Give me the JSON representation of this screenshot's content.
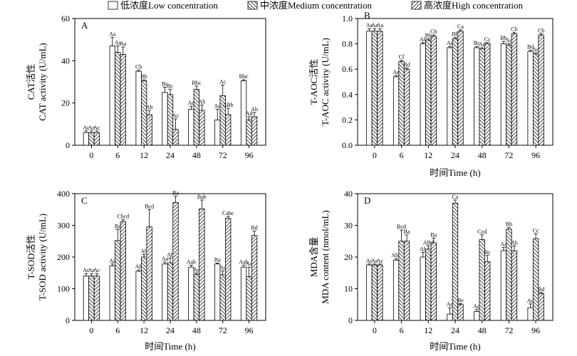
{
  "legend": [
    {
      "name": "低浓度Low concentration",
      "pattern": "none"
    },
    {
      "name": "中浓度Medium concentration",
      "pattern": "back"
    },
    {
      "name": "高浓度High concentration",
      "pattern": "fwd"
    }
  ],
  "chart_data": [
    {
      "type": "bar",
      "panel": "A",
      "categories": [
        "0",
        "6",
        "12",
        "24",
        "48",
        "72",
        "96"
      ],
      "xlabel": "",
      "ylabel": [
        "CAT活性",
        "CAT activity (U/mL)"
      ],
      "ylim": [
        0,
        60
      ],
      "yticks": [
        0,
        20,
        40,
        60
      ],
      "series": [
        {
          "name": "低浓度Low concentration",
          "values": [
            6,
            47,
            35,
            25,
            17,
            12,
            30.5
          ],
          "errors": [
            0.8,
            4,
            0.5,
            2.5,
            1.5,
            5,
            0.5
          ],
          "labels": [
            "Ac",
            "Aa",
            "Cb",
            "Bc",
            "Ad",
            "Ad",
            "Bbc"
          ]
        },
        {
          "name": "中浓度Medium concentration",
          "values": [
            6,
            44,
            30.5,
            24,
            26.5,
            23.5,
            12
          ],
          "errors": [
            0.8,
            3,
            0.5,
            2.5,
            1.5,
            5,
            1.5
          ],
          "labels": [
            "Ae",
            "Aa",
            "Bb",
            "Bc",
            "Bbc",
            "Ac",
            "Ad"
          ]
        },
        {
          "name": "高浓度High concentration",
          "values": [
            6,
            43,
            14.5,
            7.5,
            16.5,
            14.5,
            13.5
          ],
          "errors": [
            0.8,
            3.5,
            2,
            5,
            2.5,
            3,
            2
          ],
          "labels": [
            "Ac",
            "Aa",
            "Ab",
            "Ac",
            "Ab",
            "ΔBb",
            "Ab"
          ]
        }
      ]
    },
    {
      "type": "bar",
      "panel": "B",
      "categories": [
        "0",
        "6",
        "12",
        "24",
        "48",
        "72",
        "96"
      ],
      "xlabel": "时间Time (h)",
      "ylabel": [
        "T-AOC活性",
        "T-AOC activity (U/mL)"
      ],
      "ylim": [
        0,
        1.0
      ],
      "yticks": [
        0,
        0.2,
        0.4,
        0.6,
        0.8,
        1.0
      ],
      "series": [
        {
          "name": "低浓度Low concentration",
          "values": [
            0.9,
            0.54,
            0.8,
            0.77,
            0.77,
            0.8,
            0.74
          ],
          "errors": [
            0.02,
            0.01,
            0.01,
            0.01,
            0.01,
            0.02,
            0.01
          ],
          "labels": [
            "Aa",
            "Ae",
            "Ab",
            "Ac",
            "Bc",
            "Bb",
            "Bd"
          ]
        },
        {
          "name": "中浓度Medium concentration",
          "values": [
            0.9,
            0.66,
            0.83,
            0.84,
            0.76,
            0.79,
            0.72
          ],
          "errors": [
            0.02,
            0.01,
            0.01,
            0.01,
            0.01,
            0.01,
            0.01
          ],
          "labels": [
            "Aa",
            "Cf",
            "Bb",
            "Bb",
            "Ad",
            "Ac",
            "Ad"
          ]
        },
        {
          "name": "高浓度High concentration",
          "values": [
            0.9,
            0.6,
            0.86,
            0.9,
            0.8,
            0.88,
            0.87
          ],
          "errors": [
            0.02,
            0.01,
            0.01,
            0.01,
            0.01,
            0.01,
            0.01
          ],
          "labels": [
            "Aa",
            "Bd",
            "Cb",
            "Ca",
            "Cc",
            "Cb",
            "Cb"
          ]
        }
      ]
    },
    {
      "type": "bar",
      "panel": "C",
      "categories": [
        "0",
        "6",
        "12",
        "24",
        "48",
        "72",
        "96"
      ],
      "xlabel": "时间Time (h)",
      "ylabel": [
        "T-SOD活性",
        "T-SOD activity (U/mL)"
      ],
      "ylim": [
        0,
        400
      ],
      "yticks": [
        0,
        100,
        200,
        300,
        400
      ],
      "series": [
        {
          "name": "低浓度Low concentration",
          "values": [
            140,
            172,
            155,
            178,
            168,
            178,
            168
          ],
          "errors": [
            8,
            6,
            4,
            6,
            6,
            3,
            6
          ],
          "labels": [
            "Ac",
            "Aa",
            "Ab",
            "Aa",
            "Aab",
            "Ba",
            "Aab"
          ]
        },
        {
          "name": "中浓度Medium concentration",
          "values": [
            140,
            252,
            200,
            182,
            145,
            144,
            138
          ],
          "errors": [
            8,
            35,
            8,
            15,
            5,
            12,
            30
          ],
          "labels": [
            "Ae",
            "Ba",
            "Ab",
            "Ab",
            "Ac",
            "Ac",
            "Ac"
          ]
        },
        {
          "name": "高浓度High concentration",
          "values": [
            140,
            312,
            295,
            372,
            352,
            322,
            268
          ],
          "errors": [
            8,
            6,
            55,
            20,
            28,
            6,
            14
          ],
          "labels": [
            "Ac",
            "Cbcd",
            "Bcd",
            "Ba",
            "Bab",
            "Cabc",
            "Bd"
          ]
        }
      ]
    },
    {
      "type": "bar",
      "panel": "D",
      "categories": [
        "0",
        "6",
        "12",
        "24",
        "48",
        "72",
        "96"
      ],
      "xlabel": "时间Time (h)",
      "ylabel": [
        "MDA含量",
        "MDA content (nmol/mL)"
      ],
      "ylim": [
        0,
        40
      ],
      "yticks": [
        0,
        10,
        20,
        30,
        40
      ],
      "series": [
        {
          "name": "低浓度Low concentration",
          "values": [
            17.5,
            19,
            20,
            2,
            2.8,
            22,
            4
          ],
          "errors": [
            0.3,
            0.5,
            1.5,
            2,
            0.6,
            1,
            1.2
          ],
          "labels": [
            "Ac",
            "Abc",
            "Ab",
            "Ad",
            "Ad",
            "Aa",
            "Ad"
          ]
        },
        {
          "name": "中浓度Medium concentration",
          "values": [
            17.5,
            25,
            22.5,
            37,
            25.5,
            28.8,
            25.8
          ],
          "errors": [
            0.3,
            3.5,
            1,
            1,
            1.5,
            0.5,
            1.5
          ],
          "labels": [
            "Ae",
            "Bcd",
            "ABd",
            "Ca",
            "Ccd",
            "Bb",
            "Cc"
          ]
        },
        {
          "name": "高浓度High concentration",
          "values": [
            17.5,
            25,
            24.5,
            5,
            18.5,
            22,
            8.5
          ],
          "errors": [
            0.3,
            2,
            1.5,
            0.3,
            2,
            1.5,
            0.3
          ],
          "labels": [
            "Ac",
            "Ba",
            "Ba",
            "Be",
            "Bc",
            "Ab",
            "Bd"
          ]
        }
      ]
    }
  ]
}
